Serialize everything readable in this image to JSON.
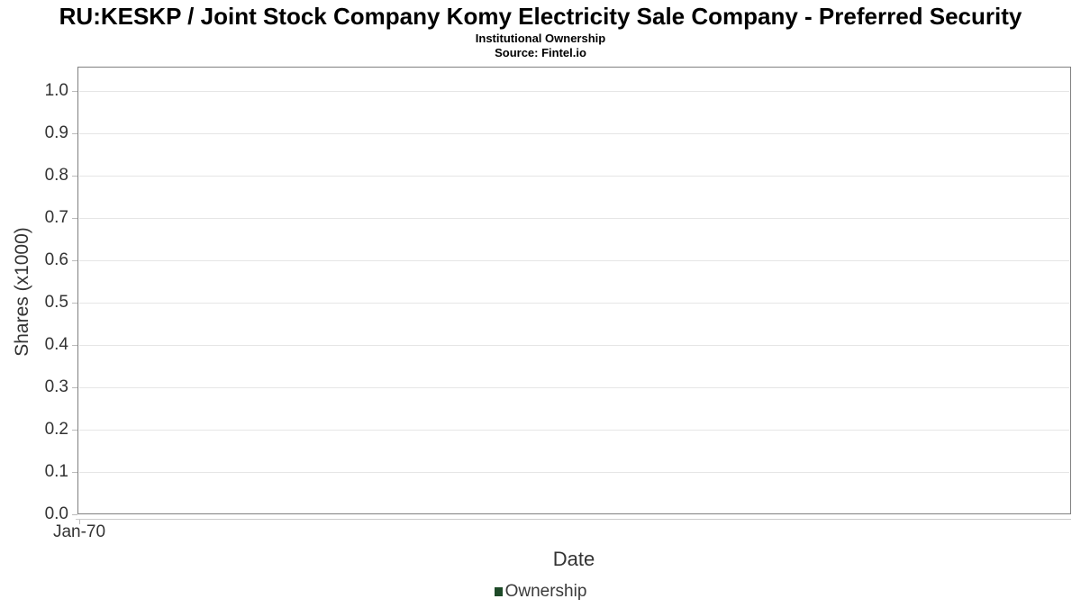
{
  "chart_data": {
    "type": "line",
    "title": "RU:KESKP / Joint Stock Company Komy Electricity Sale Company - Preferred Security",
    "subtitle": "Institutional Ownership",
    "source": "Source: Fintel.io",
    "xlabel": "Date",
    "ylabel": "Shares (x1000)",
    "x_tick_labels": [
      "Jan-70"
    ],
    "y_ticks": [
      0.0,
      0.1,
      0.2,
      0.3,
      0.4,
      0.5,
      0.6,
      0.7,
      0.8,
      0.9,
      1.0
    ],
    "ylim": [
      0,
      1.06
    ],
    "grid": "horizontal",
    "legend": {
      "position": "bottom-center",
      "entries": [
        {
          "label": "Ownership",
          "marker": "square",
          "color": "#1e4a28"
        }
      ]
    },
    "series": [
      {
        "name": "Ownership",
        "x": [],
        "values": []
      }
    ]
  },
  "colors": {
    "plot_border": "#808080",
    "gridline": "#e6e6e6",
    "x_axis_line": "#cccccc",
    "tick_mark": "#bbbbbb",
    "tick_text": "#333333",
    "title_text": "#000000",
    "legend_marker_green": "#1e4a28"
  }
}
